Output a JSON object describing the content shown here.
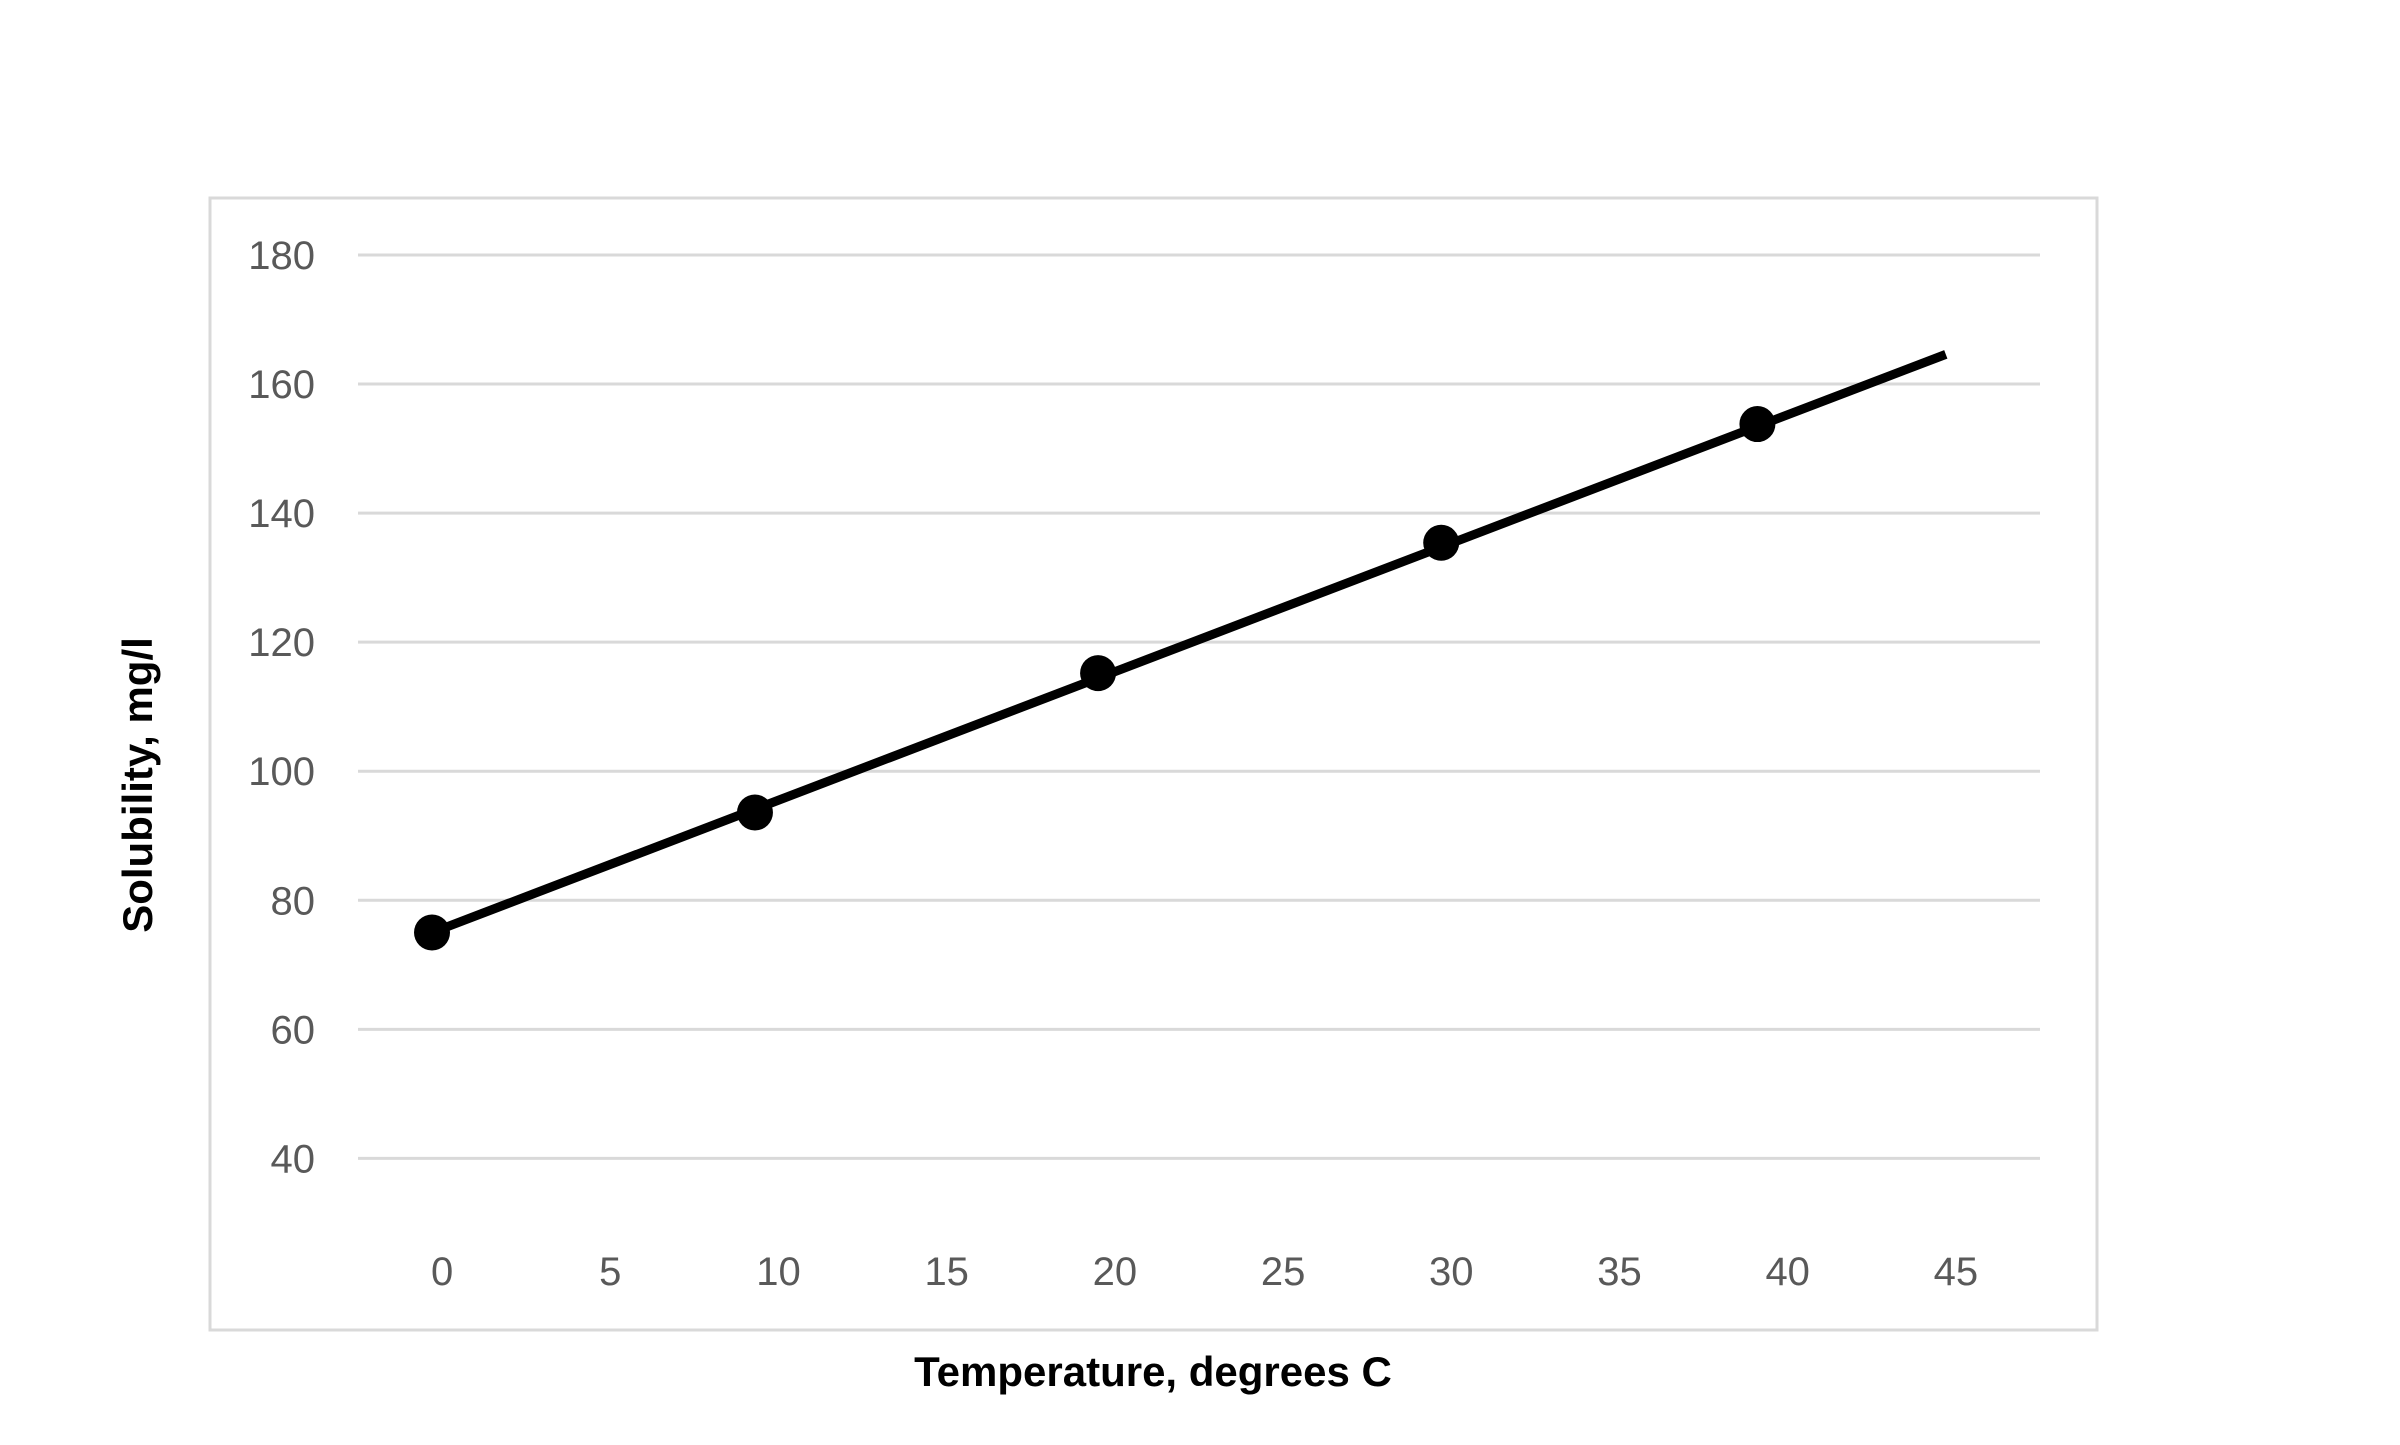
{
  "chart_data": {
    "type": "scatter",
    "title": "",
    "xlabel": "Temperature, degrees C",
    "ylabel": "Solubility, mg/l",
    "xlim": [
      -2.5,
      47.5
    ],
    "ylim": [
      32,
      180
    ],
    "x_ticks": [
      0,
      5,
      10,
      15,
      20,
      25,
      30,
      35,
      40,
      45
    ],
    "y_ticks": [
      40,
      60,
      80,
      100,
      120,
      140,
      160,
      180
    ],
    "grid": "horizontal",
    "legend": "none",
    "series": [
      {
        "points": [
          {
            "x": -0.3,
            "y": 75
          },
          {
            "x": 9.3,
            "y": 93.6
          },
          {
            "x": 19.5,
            "y": 115.2
          },
          {
            "x": 29.7,
            "y": 135.4
          },
          {
            "x": 39.1,
            "y": 153.8
          }
        ],
        "marker_color": "#000000"
      }
    ],
    "trendline": {
      "type": "linear",
      "x_range": [
        -0.3,
        44.7
      ],
      "y_range": [
        75,
        164.6
      ],
      "color": "#000000"
    },
    "colors": {
      "grid": "#d9d9d9",
      "frame": "#d9d9d9",
      "tick_text": "#595959",
      "axis_title": "#000000"
    }
  }
}
